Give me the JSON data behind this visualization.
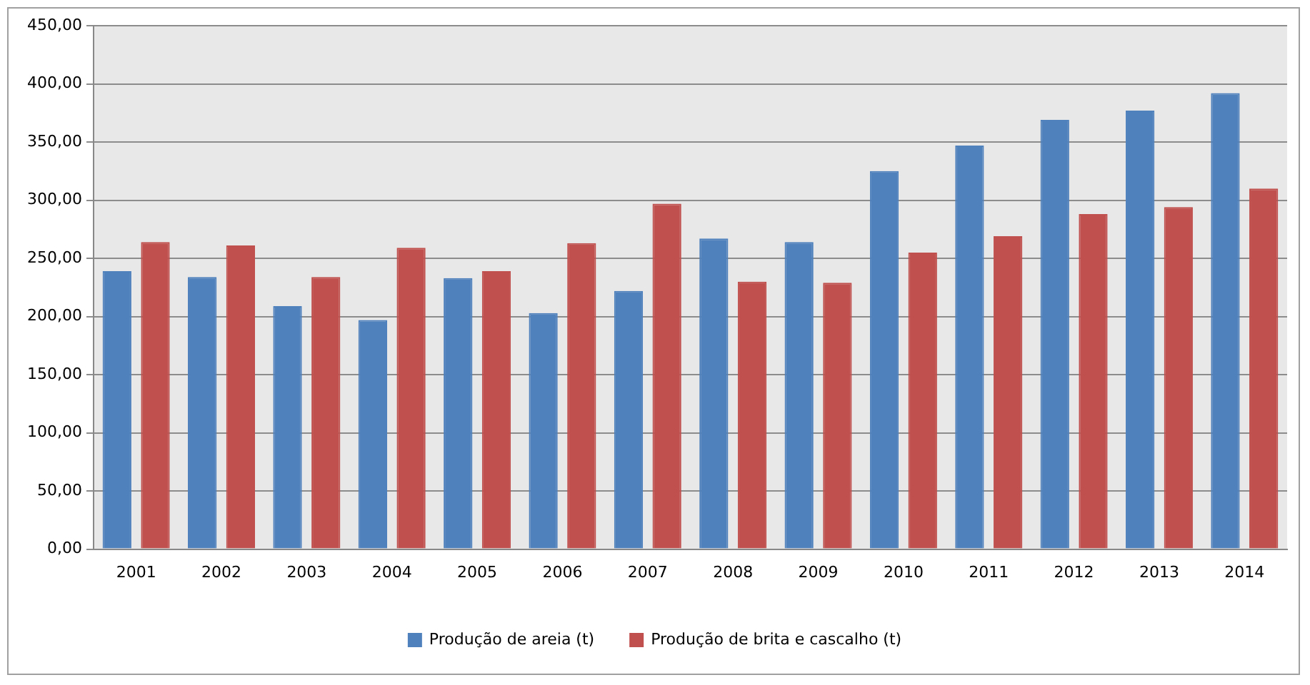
{
  "chart_data": {
    "type": "bar",
    "categories": [
      "2001",
      "2002",
      "2003",
      "2004",
      "2005",
      "2006",
      "2007",
      "2008",
      "2009",
      "2010",
      "2011",
      "2012",
      "2013",
      "2014"
    ],
    "series": [
      {
        "name": "Produção de areia (t)",
        "color": "#4f81bd",
        "values": [
          239,
          234,
          209,
          197,
          233,
          203,
          222,
          267,
          264,
          325,
          347,
          369,
          377,
          392
        ]
      },
      {
        "name": "Produção de brita e cascalho (t)",
        "color": "#c0504d",
        "values": [
          264,
          261,
          234,
          259,
          239,
          263,
          297,
          230,
          229,
          255,
          269,
          288,
          294,
          310
        ]
      }
    ],
    "ylim": [
      0,
      450
    ],
    "yticks": [
      {
        "value": 0,
        "label": "0,00"
      },
      {
        "value": 50,
        "label": "50,00"
      },
      {
        "value": 100,
        "label": "100,00"
      },
      {
        "value": 150,
        "label": "150,00"
      },
      {
        "value": 200,
        "label": "200,00"
      },
      {
        "value": 250,
        "label": "250,00"
      },
      {
        "value": 300,
        "label": "300,00"
      },
      {
        "value": 350,
        "label": "350,00"
      },
      {
        "value": 400,
        "label": "400,00"
      },
      {
        "value": 450,
        "label": "450,00"
      }
    ],
    "grid": "y",
    "legend": "bottom"
  }
}
